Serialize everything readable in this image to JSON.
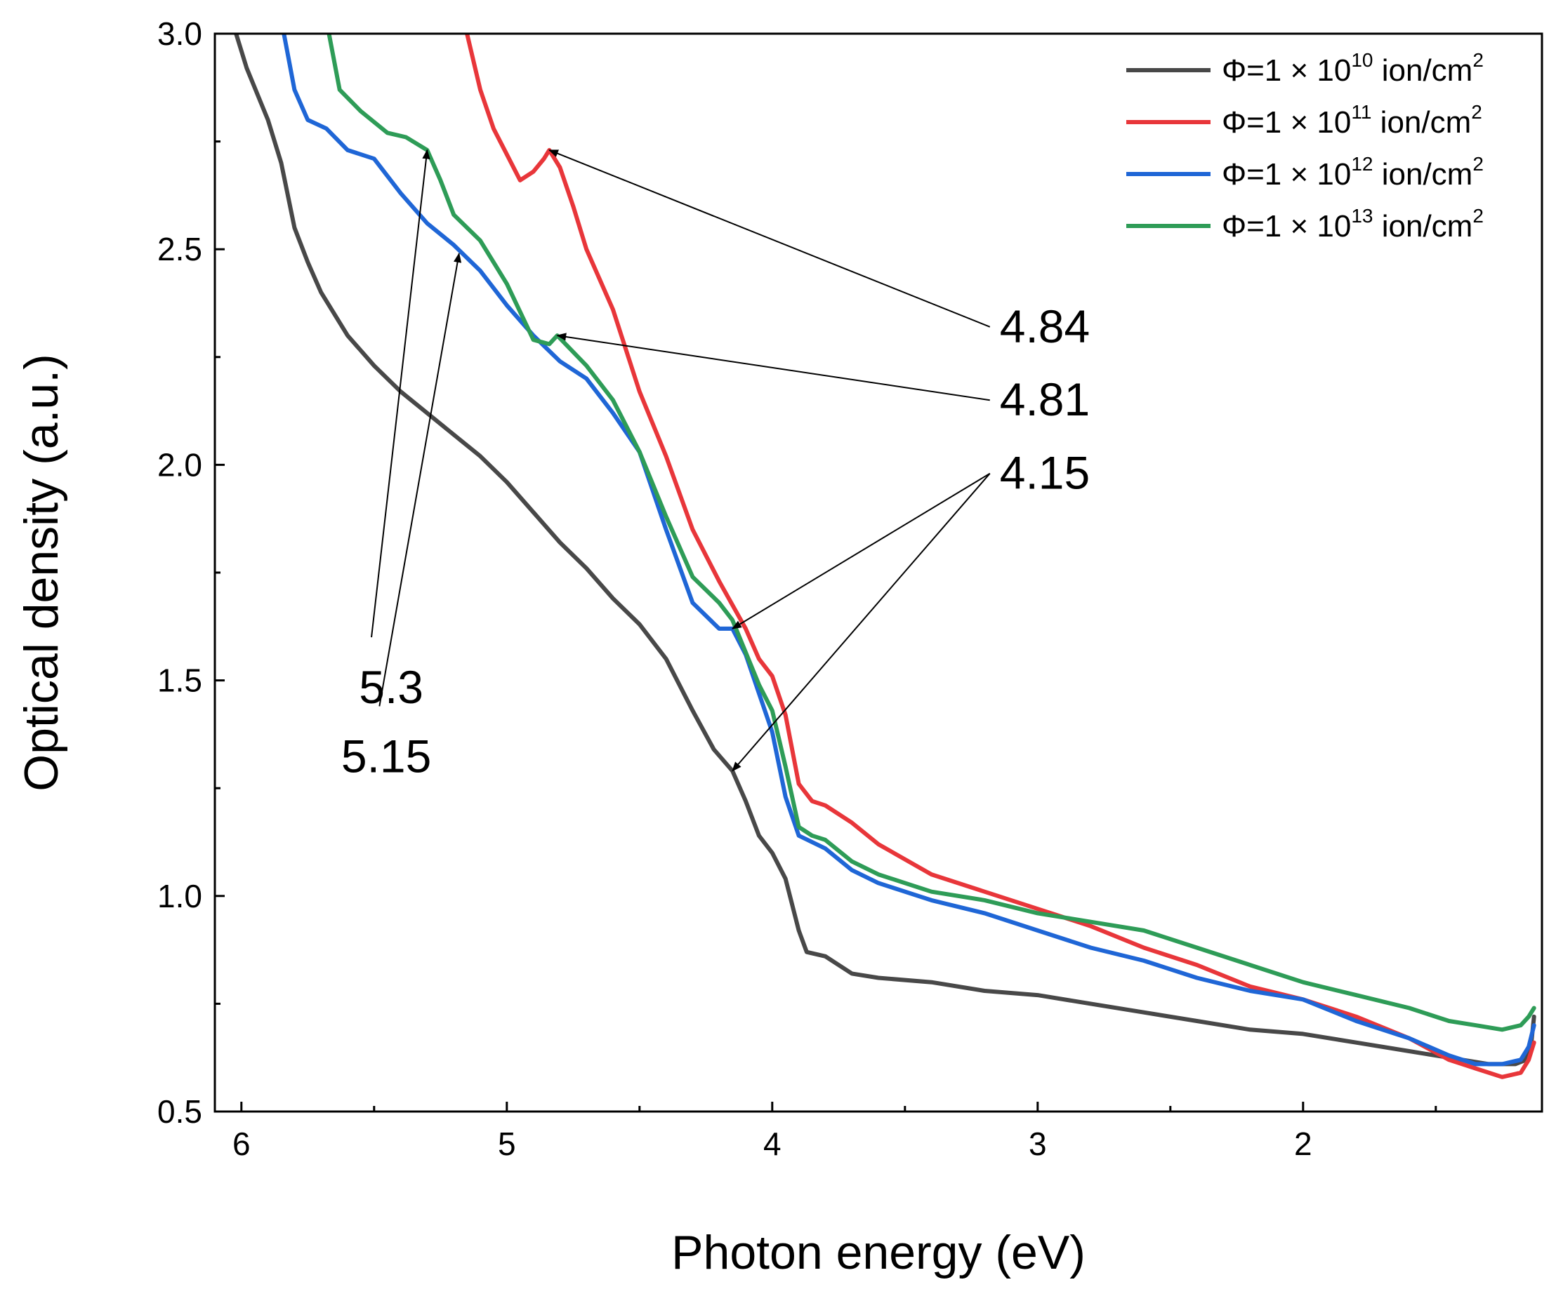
{
  "chart_data": {
    "type": "line",
    "xlabel": "Photon energy (eV)",
    "ylabel": "Optical density (a.u.)",
    "xlim": [
      6.1,
      1.1
    ],
    "ylim": [
      0.5,
      3.0
    ],
    "x_ticks": [
      6,
      5,
      4,
      3,
      2
    ],
    "x_tick_labels": [
      "6",
      "5",
      "4",
      "3",
      "2"
    ],
    "x_minor_ticks": [
      5.5,
      4.5,
      3.5,
      2.5,
      1.5
    ],
    "y_ticks": [
      0.5,
      1.0,
      1.5,
      2.0,
      2.5,
      3.0
    ],
    "y_tick_labels": [
      "0.5",
      "1.0",
      "1.5",
      "2.0",
      "2.5",
      "3.0"
    ],
    "y_minor_ticks": [
      0.75,
      1.25,
      1.75,
      2.25,
      2.75
    ],
    "legend_position": "top-right",
    "series": [
      {
        "name": "Φ=1 × 10¹⁰ ion/cm²",
        "label_prefix": "Φ=1 × 10",
        "label_exp": "10",
        "label_unit": " ion/cm",
        "label_unit_exp": "2",
        "color": "#484848",
        "points": [
          [
            6.02,
            3.0
          ],
          [
            5.98,
            2.92
          ],
          [
            5.9,
            2.8
          ],
          [
            5.85,
            2.7
          ],
          [
            5.8,
            2.55
          ],
          [
            5.75,
            2.47
          ],
          [
            5.7,
            2.4
          ],
          [
            5.6,
            2.3
          ],
          [
            5.5,
            2.23
          ],
          [
            5.4,
            2.17
          ],
          [
            5.3,
            2.12
          ],
          [
            5.2,
            2.07
          ],
          [
            5.1,
            2.02
          ],
          [
            5.0,
            1.96
          ],
          [
            4.9,
            1.89
          ],
          [
            4.8,
            1.82
          ],
          [
            4.7,
            1.76
          ],
          [
            4.6,
            1.69
          ],
          [
            4.5,
            1.63
          ],
          [
            4.4,
            1.55
          ],
          [
            4.3,
            1.43
          ],
          [
            4.22,
            1.34
          ],
          [
            4.15,
            1.29
          ],
          [
            4.1,
            1.22
          ],
          [
            4.05,
            1.14
          ],
          [
            4.0,
            1.1
          ],
          [
            3.95,
            1.04
          ],
          [
            3.9,
            0.92
          ],
          [
            3.87,
            0.87
          ],
          [
            3.8,
            0.86
          ],
          [
            3.7,
            0.82
          ],
          [
            3.6,
            0.81
          ],
          [
            3.4,
            0.8
          ],
          [
            3.2,
            0.78
          ],
          [
            3.0,
            0.77
          ],
          [
            2.8,
            0.75
          ],
          [
            2.6,
            0.73
          ],
          [
            2.4,
            0.71
          ],
          [
            2.2,
            0.69
          ],
          [
            2.0,
            0.68
          ],
          [
            1.8,
            0.66
          ],
          [
            1.6,
            0.64
          ],
          [
            1.4,
            0.62
          ],
          [
            1.3,
            0.61
          ],
          [
            1.2,
            0.61
          ],
          [
            1.16,
            0.62
          ],
          [
            1.14,
            0.66
          ],
          [
            1.13,
            0.72
          ]
        ]
      },
      {
        "name": "Φ=1 × 10¹¹ ion/cm²",
        "label_prefix": "Φ=1 × 10",
        "label_exp": "11",
        "label_unit": " ion/cm",
        "label_unit_exp": "2",
        "color": "#e8363a",
        "points": [
          [
            5.15,
            3.0
          ],
          [
            5.1,
            2.87
          ],
          [
            5.05,
            2.78
          ],
          [
            5.0,
            2.72
          ],
          [
            4.95,
            2.66
          ],
          [
            4.9,
            2.68
          ],
          [
            4.86,
            2.71
          ],
          [
            4.84,
            2.73
          ],
          [
            4.8,
            2.69
          ],
          [
            4.75,
            2.6
          ],
          [
            4.7,
            2.5
          ],
          [
            4.6,
            2.36
          ],
          [
            4.5,
            2.17
          ],
          [
            4.4,
            2.02
          ],
          [
            4.3,
            1.85
          ],
          [
            4.2,
            1.73
          ],
          [
            4.1,
            1.62
          ],
          [
            4.05,
            1.55
          ],
          [
            4.0,
            1.51
          ],
          [
            3.95,
            1.42
          ],
          [
            3.9,
            1.26
          ],
          [
            3.85,
            1.22
          ],
          [
            3.8,
            1.21
          ],
          [
            3.7,
            1.17
          ],
          [
            3.6,
            1.12
          ],
          [
            3.4,
            1.05
          ],
          [
            3.2,
            1.01
          ],
          [
            3.0,
            0.97
          ],
          [
            2.8,
            0.93
          ],
          [
            2.6,
            0.88
          ],
          [
            2.4,
            0.84
          ],
          [
            2.2,
            0.79
          ],
          [
            2.0,
            0.76
          ],
          [
            1.8,
            0.72
          ],
          [
            1.6,
            0.67
          ],
          [
            1.45,
            0.62
          ],
          [
            1.35,
            0.6
          ],
          [
            1.25,
            0.58
          ],
          [
            1.18,
            0.59
          ],
          [
            1.15,
            0.62
          ],
          [
            1.13,
            0.66
          ]
        ]
      },
      {
        "name": "Φ=1 × 10¹² ion/cm²",
        "label_prefix": "Φ=1 × 10",
        "label_exp": "12",
        "label_unit": " ion/cm",
        "label_unit_exp": "2",
        "color": "#1f66d6",
        "points": [
          [
            5.84,
            3.0
          ],
          [
            5.8,
            2.87
          ],
          [
            5.75,
            2.8
          ],
          [
            5.68,
            2.78
          ],
          [
            5.6,
            2.73
          ],
          [
            5.5,
            2.71
          ],
          [
            5.4,
            2.63
          ],
          [
            5.3,
            2.56
          ],
          [
            5.2,
            2.51
          ],
          [
            5.15,
            2.48
          ],
          [
            5.1,
            2.45
          ],
          [
            5.0,
            2.37
          ],
          [
            4.9,
            2.3
          ],
          [
            4.8,
            2.24
          ],
          [
            4.7,
            2.2
          ],
          [
            4.6,
            2.12
          ],
          [
            4.5,
            2.03
          ],
          [
            4.4,
            1.85
          ],
          [
            4.3,
            1.68
          ],
          [
            4.2,
            1.62
          ],
          [
            4.15,
            1.62
          ],
          [
            4.1,
            1.56
          ],
          [
            4.05,
            1.47
          ],
          [
            4.0,
            1.38
          ],
          [
            3.95,
            1.23
          ],
          [
            3.9,
            1.14
          ],
          [
            3.8,
            1.11
          ],
          [
            3.7,
            1.06
          ],
          [
            3.6,
            1.03
          ],
          [
            3.4,
            0.99
          ],
          [
            3.2,
            0.96
          ],
          [
            3.0,
            0.92
          ],
          [
            2.8,
            0.88
          ],
          [
            2.6,
            0.85
          ],
          [
            2.4,
            0.81
          ],
          [
            2.2,
            0.78
          ],
          [
            2.0,
            0.76
          ],
          [
            1.8,
            0.71
          ],
          [
            1.6,
            0.67
          ],
          [
            1.45,
            0.63
          ],
          [
            1.35,
            0.61
          ],
          [
            1.25,
            0.61
          ],
          [
            1.18,
            0.62
          ],
          [
            1.15,
            0.65
          ],
          [
            1.13,
            0.7
          ]
        ]
      },
      {
        "name": "Φ=1 × 10¹³ ion/cm²",
        "label_prefix": "Φ=1 × 10",
        "label_exp": "13",
        "label_unit": " ion/cm",
        "label_unit_exp": "2",
        "color": "#2e9c57",
        "points": [
          [
            5.67,
            3.0
          ],
          [
            5.63,
            2.87
          ],
          [
            5.55,
            2.82
          ],
          [
            5.45,
            2.77
          ],
          [
            5.38,
            2.76
          ],
          [
            5.3,
            2.73
          ],
          [
            5.25,
            2.66
          ],
          [
            5.2,
            2.58
          ],
          [
            5.1,
            2.52
          ],
          [
            5.0,
            2.42
          ],
          [
            4.9,
            2.29
          ],
          [
            4.84,
            2.28
          ],
          [
            4.81,
            2.3
          ],
          [
            4.7,
            2.23
          ],
          [
            4.6,
            2.15
          ],
          [
            4.5,
            2.03
          ],
          [
            4.4,
            1.88
          ],
          [
            4.3,
            1.74
          ],
          [
            4.2,
            1.68
          ],
          [
            4.15,
            1.64
          ],
          [
            4.05,
            1.49
          ],
          [
            4.0,
            1.43
          ],
          [
            3.95,
            1.3
          ],
          [
            3.9,
            1.16
          ],
          [
            3.85,
            1.14
          ],
          [
            3.8,
            1.13
          ],
          [
            3.7,
            1.08
          ],
          [
            3.6,
            1.05
          ],
          [
            3.4,
            1.01
          ],
          [
            3.2,
            0.99
          ],
          [
            3.0,
            0.96
          ],
          [
            2.8,
            0.94
          ],
          [
            2.6,
            0.92
          ],
          [
            2.4,
            0.88
          ],
          [
            2.2,
            0.84
          ],
          [
            2.0,
            0.8
          ],
          [
            1.8,
            0.77
          ],
          [
            1.6,
            0.74
          ],
          [
            1.45,
            0.71
          ],
          [
            1.35,
            0.7
          ],
          [
            1.25,
            0.69
          ],
          [
            1.18,
            0.7
          ],
          [
            1.15,
            0.72
          ],
          [
            1.13,
            0.74
          ]
        ]
      }
    ],
    "annotations": [
      {
        "text": "4.84",
        "from": [
          3.18,
          2.32
        ],
        "targets": [
          [
            4.84,
            2.73
          ]
        ]
      },
      {
        "text": "4.81",
        "from": [
          3.18,
          2.15
        ],
        "targets": [
          [
            4.81,
            2.3
          ]
        ]
      },
      {
        "text": "4.15",
        "from": [
          3.18,
          1.98
        ],
        "targets": [
          [
            4.15,
            1.62
          ],
          [
            4.15,
            1.29
          ]
        ]
      },
      {
        "text": "5.3",
        "from": [
          5.51,
          1.6
        ],
        "targets": [
          [
            5.3,
            2.73
          ]
        ]
      },
      {
        "text": "5.15",
        "from": [
          5.48,
          1.44
        ],
        "targets": [
          [
            5.18,
            2.49
          ]
        ]
      }
    ]
  }
}
